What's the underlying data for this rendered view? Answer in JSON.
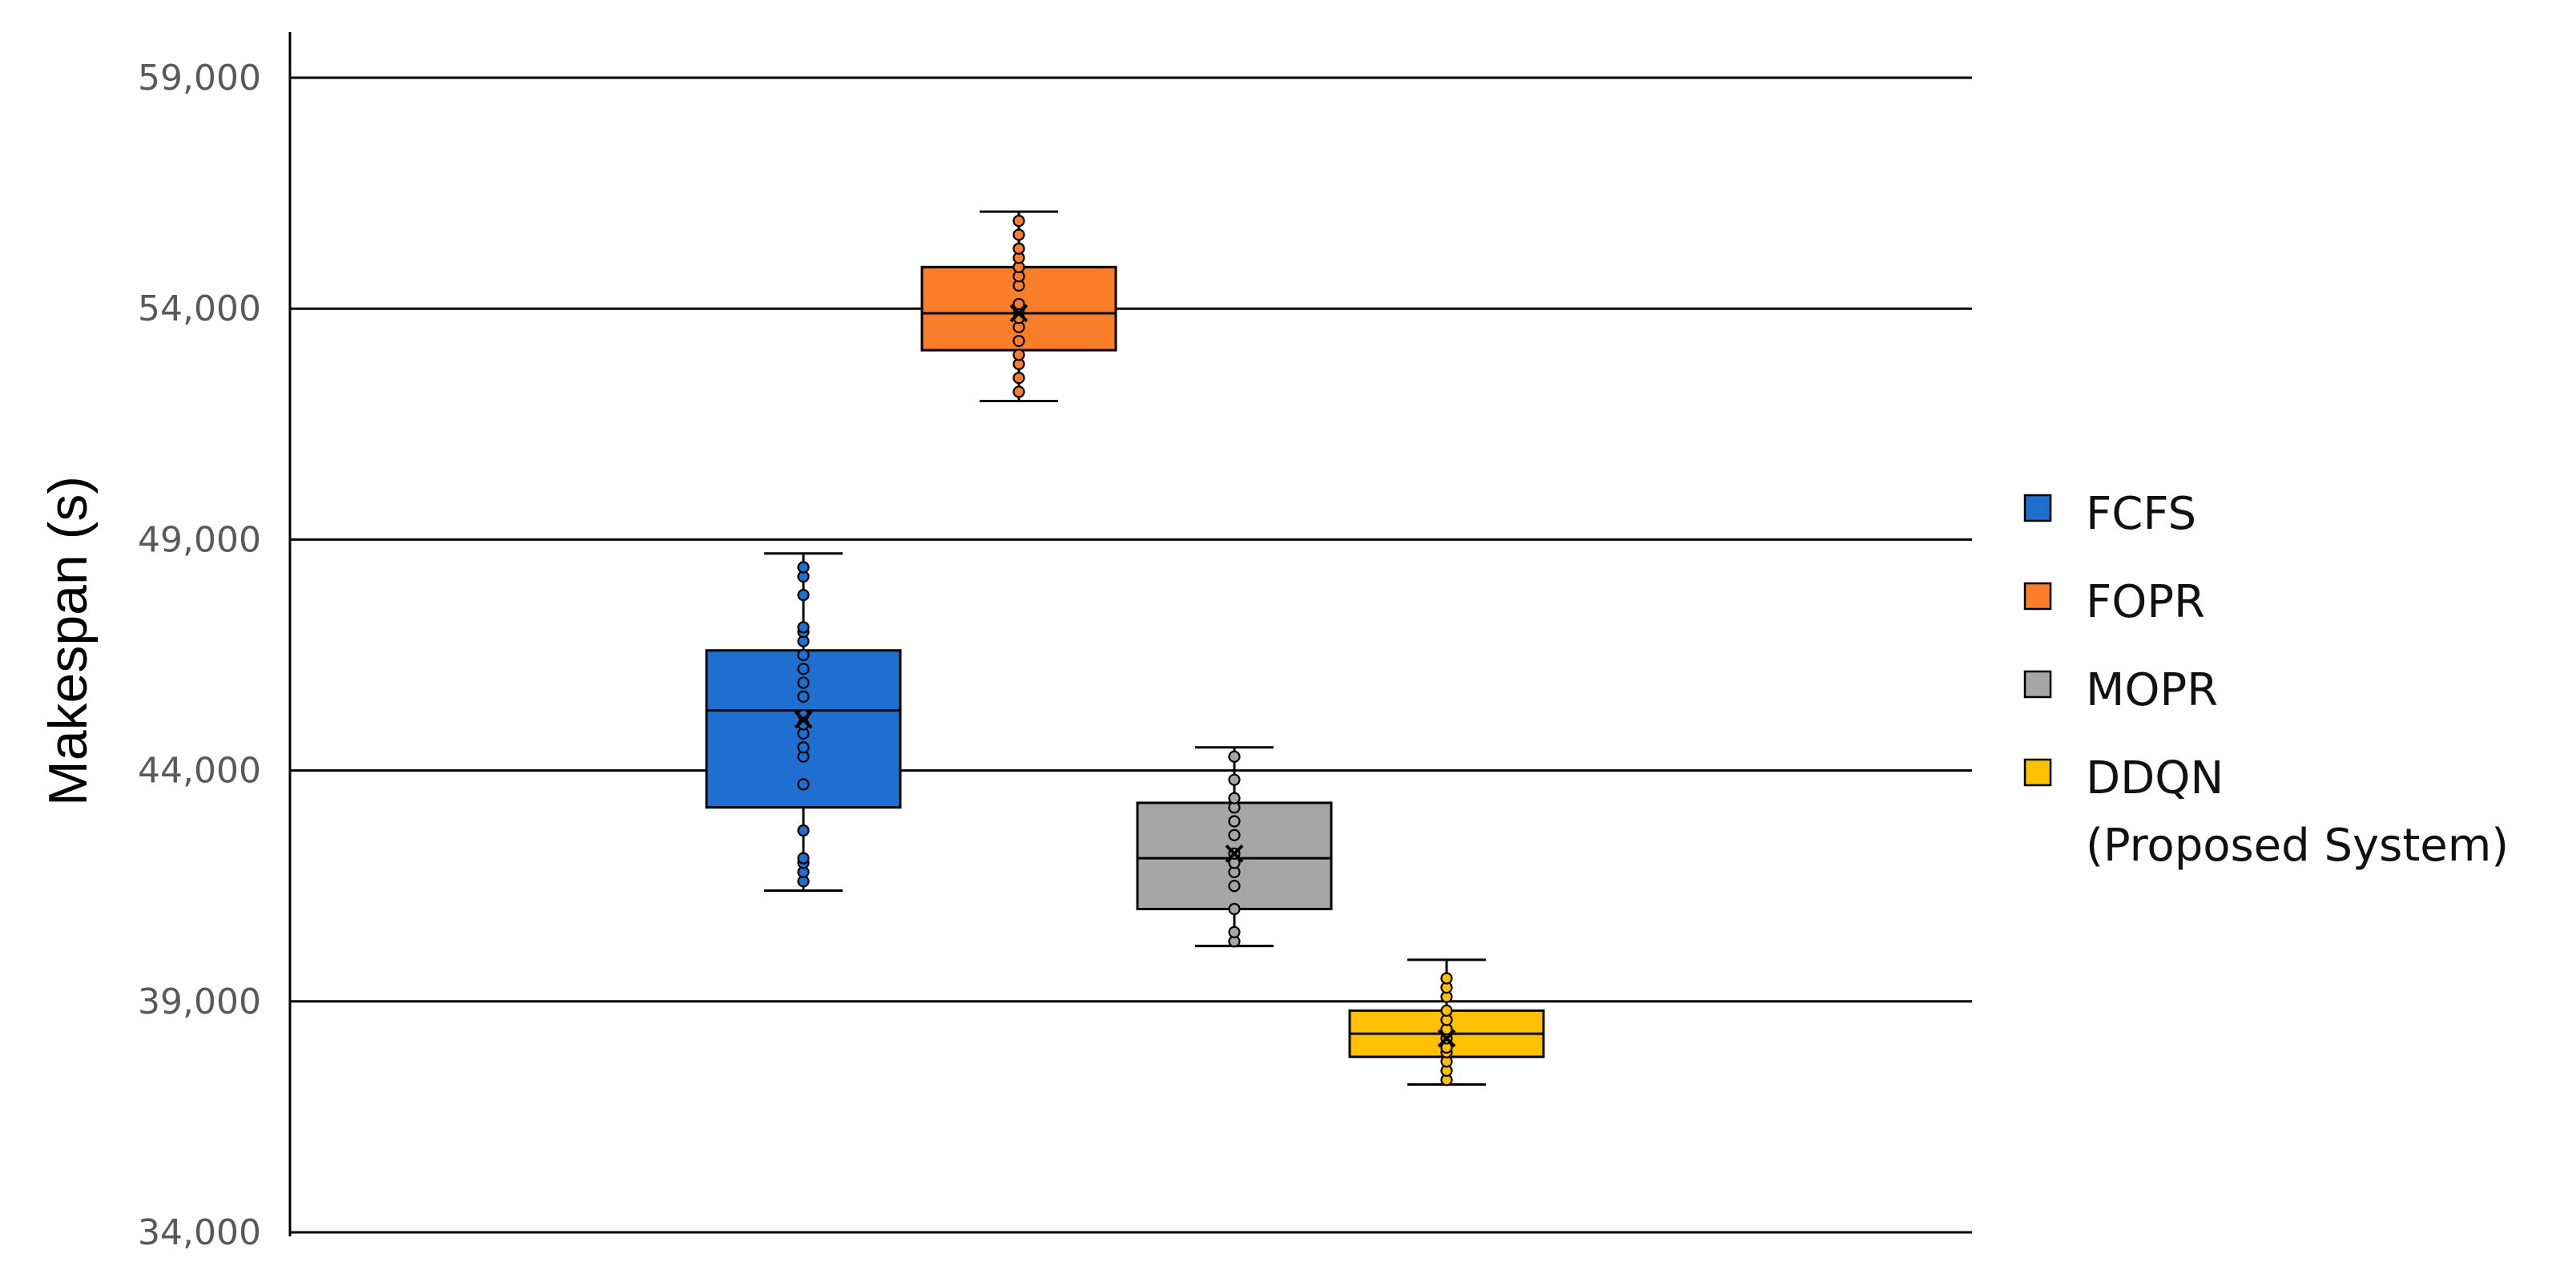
{
  "chart_data": {
    "type": "box",
    "title": "",
    "ylabel": "Makespan (s)",
    "xlabel": "",
    "ylim": [
      34000,
      60000
    ],
    "yticks": [
      34000,
      39000,
      44000,
      49000,
      54000,
      59000
    ],
    "ytick_labels": [
      "34,000",
      "39,000",
      "44,000",
      "49,000",
      "54,000",
      "59,000"
    ],
    "grid": "horizontal",
    "legend_position": "right",
    "series": [
      {
        "name": "FCFS",
        "color": "#1F6FD1",
        "min": 41400,
        "q1": 43200,
        "median": 45300,
        "q3": 46600,
        "max": 48700,
        "mean": 45100,
        "points": [
          41600,
          41800,
          42000,
          42100,
          42700,
          43700,
          44300,
          44500,
          44800,
          45000,
          45200,
          45600,
          45900,
          46200,
          46500,
          46800,
          47000,
          47100,
          47800,
          48200,
          48400
        ]
      },
      {
        "name": "FOPR",
        "color": "#FA7D2A",
        "min": 52000,
        "q1": 53100,
        "median": 53900,
        "q3": 54900,
        "max": 56100,
        "mean": 53900,
        "points": [
          52200,
          52500,
          52800,
          53000,
          53300,
          53600,
          53800,
          54000,
          54100,
          54500,
          54700,
          54900,
          55100,
          55300,
          55600,
          55900
        ]
      },
      {
        "name": "MOPR",
        "color": "#A6A6A6",
        "min": 40200,
        "q1": 41000,
        "median": 42100,
        "q3": 43300,
        "max": 44500,
        "mean": 42200,
        "points": [
          40300,
          40500,
          41000,
          41500,
          41800,
          42000,
          42200,
          42600,
          42900,
          43200,
          43400,
          43800,
          44300
        ]
      },
      {
        "name": "DDQN\n(Proposed System)",
        "color": "#FFC000",
        "min": 37200,
        "q1": 37800,
        "median": 38300,
        "q3": 38800,
        "max": 39900,
        "mean": 38200,
        "points": [
          37300,
          37500,
          37700,
          37900,
          38000,
          38200,
          38400,
          38600,
          38800,
          39100,
          39300,
          39500
        ]
      }
    ],
    "legend": [
      "FCFS",
      "FOPR",
      "MOPR",
      "DDQN",
      "(Proposed System)"
    ]
  }
}
